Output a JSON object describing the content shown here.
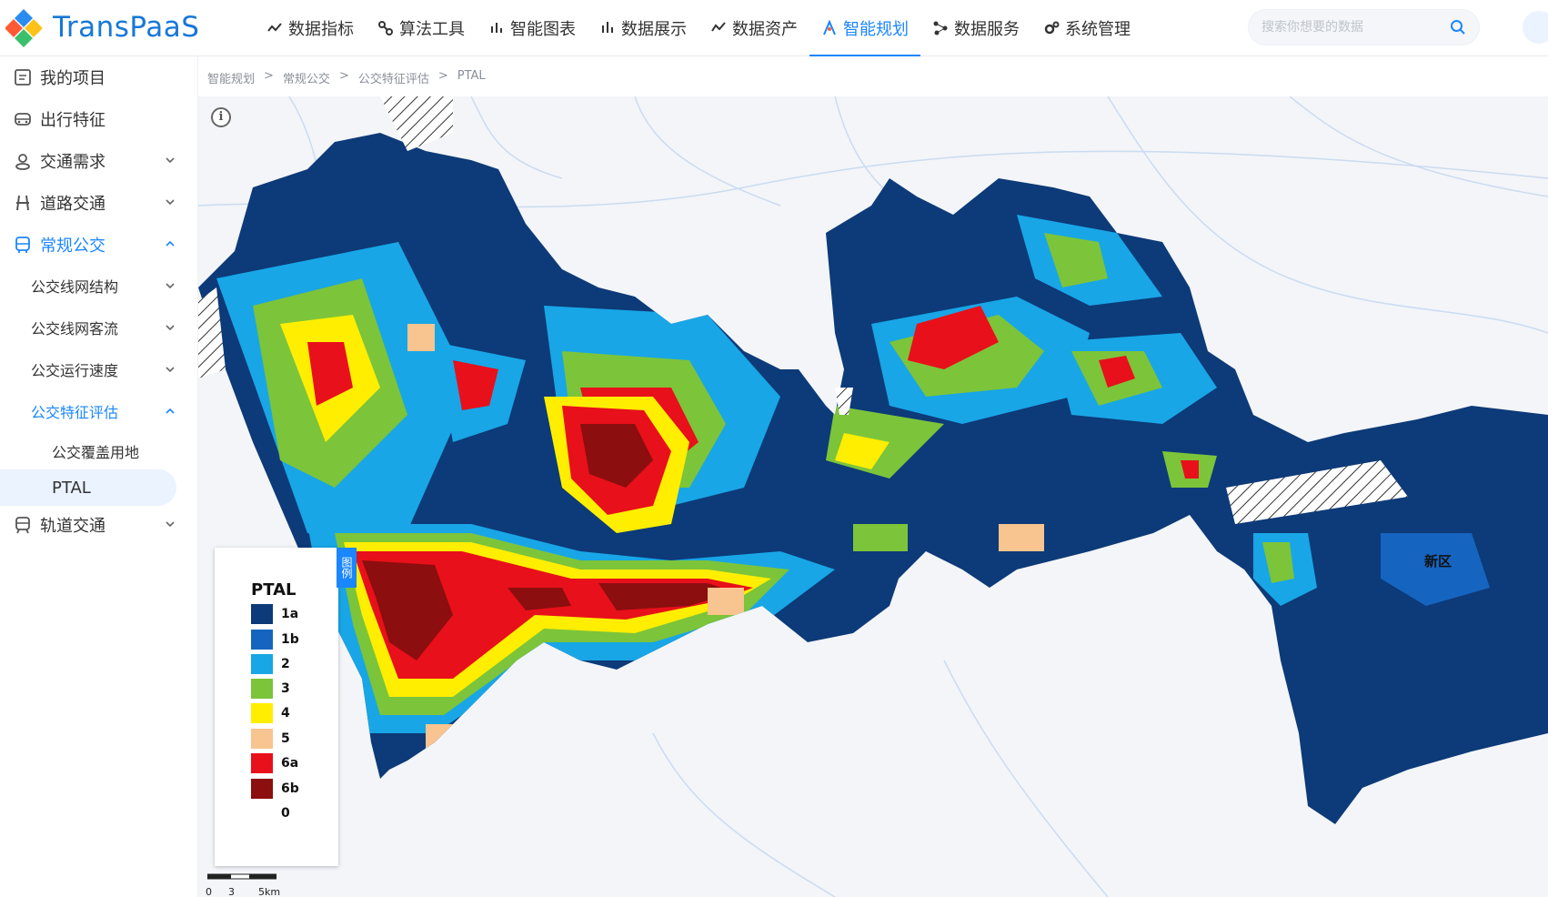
{
  "brand": {
    "name": "TransPaaS",
    "accent": "#1a86ff"
  },
  "nav": {
    "items": [
      {
        "label": "数据指标",
        "icon": "metrics-icon"
      },
      {
        "label": "算法工具",
        "icon": "algorithm-icon"
      },
      {
        "label": "智能图表",
        "icon": "chart-icon"
      },
      {
        "label": "数据展示",
        "icon": "display-icon"
      },
      {
        "label": "数据资产",
        "icon": "asset-icon"
      },
      {
        "label": "智能规划",
        "icon": "planning-icon",
        "active": true
      },
      {
        "label": "数据服务",
        "icon": "service-icon"
      },
      {
        "label": "系统管理",
        "icon": "settings-icon"
      }
    ]
  },
  "search": {
    "placeholder": "搜索你想要的数据"
  },
  "sidebar": {
    "items": [
      {
        "label": "我的项目",
        "icon": "project-icon"
      },
      {
        "label": "出行特征",
        "icon": "car-icon"
      },
      {
        "label": "交通需求",
        "icon": "demand-icon"
      },
      {
        "label": "道路交通",
        "icon": "road-icon"
      },
      {
        "label": "常规公交",
        "icon": "bus-icon"
      },
      {
        "label": "轨道交通",
        "icon": "rail-icon"
      }
    ],
    "sub": [
      {
        "label": "公交线网结构"
      },
      {
        "label": "公交线网客流"
      },
      {
        "label": "公交运行速度"
      },
      {
        "label": "公交特征评估"
      }
    ],
    "leaves": [
      {
        "label": "公交覆盖用地"
      },
      {
        "label": "PTAL"
      }
    ]
  },
  "breadcrumb": [
    "智能规划",
    "常规公交",
    "公交特征评估",
    "PTAL"
  ],
  "map": {
    "legend_tab": "图例",
    "legend_title": "PTAL",
    "legend": [
      {
        "label": "1a",
        "color": "#0d3a78"
      },
      {
        "label": "1b",
        "color": "#1565c0"
      },
      {
        "label": "2",
        "color": "#18a6e6"
      },
      {
        "label": "3",
        "color": "#7cc43a"
      },
      {
        "label": "4",
        "color": "#ffee00"
      },
      {
        "label": "5",
        "color": "#f8c48f"
      },
      {
        "label": "6a",
        "color": "#e8101a"
      },
      {
        "label": "6b",
        "color": "#8c0e0e"
      },
      {
        "label": "0",
        "color": "#ffffff"
      }
    ],
    "area_label": "新区",
    "scale": [
      "0",
      "3",
      "5km"
    ],
    "info": "i"
  }
}
